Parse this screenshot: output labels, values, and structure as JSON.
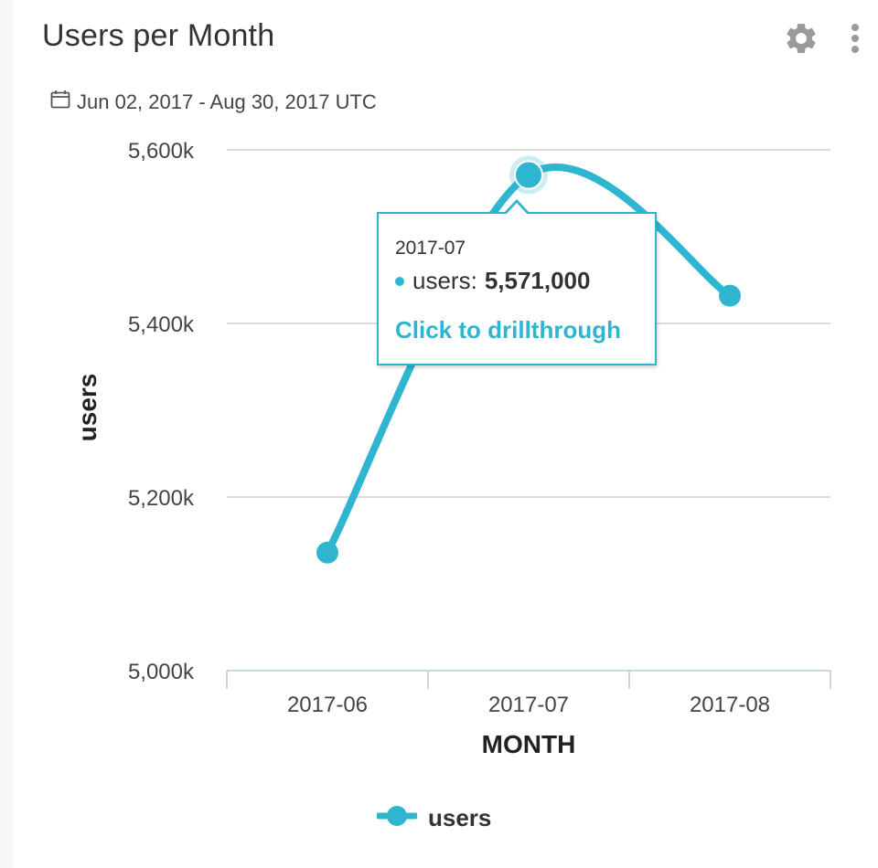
{
  "widget": {
    "title": "Users per Month",
    "date_range": "Jun 02, 2017 - Aug 30, 2017 UTC",
    "icons": [
      "calendar-icon",
      "gear-icon",
      "more-vertical-icon"
    ]
  },
  "colors": {
    "series": "#2eb5d0",
    "grid": "#dcdcdc",
    "axis": "#c9d6e6"
  },
  "chart_data": {
    "type": "line",
    "categories": [
      "2017-06",
      "2017-07",
      "2017-08"
    ],
    "series": [
      {
        "name": "users",
        "values": [
          5136000,
          5571000,
          5432000
        ]
      }
    ],
    "xlabel": "MONTH",
    "ylabel": "users",
    "ylim": [
      5000000,
      5600000
    ],
    "yticks": [
      {
        "value": 5000000,
        "label": "5,000k"
      },
      {
        "value": 5200000,
        "label": "5,200k"
      },
      {
        "value": 5400000,
        "label": "5,400k"
      },
      {
        "value": 5600000,
        "label": "5,600k"
      }
    ],
    "grid": true,
    "smooth": true,
    "legend": "bottom-center"
  },
  "tooltip": {
    "header": "2017-07",
    "series_label": "users:",
    "value": "5,571,000",
    "link_text": "Click to drillthrough"
  },
  "legend": {
    "label": "users"
  }
}
